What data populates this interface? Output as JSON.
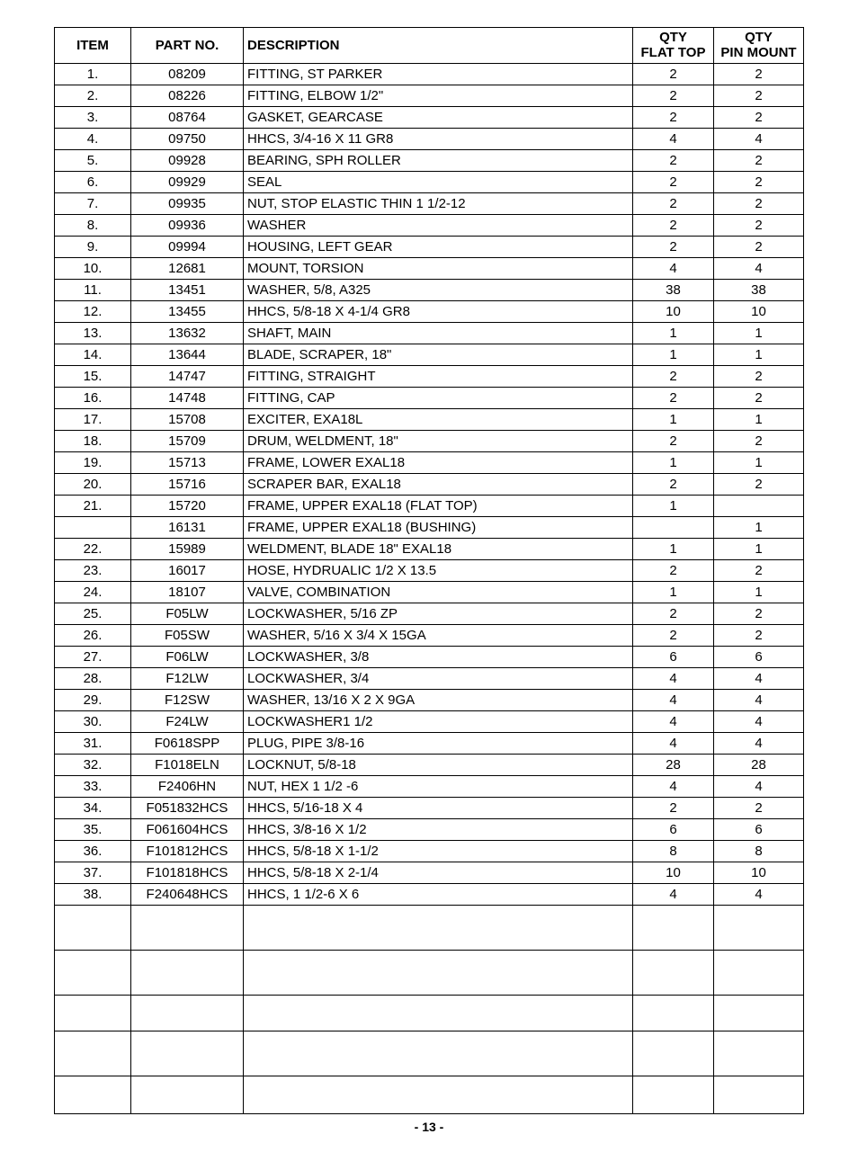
{
  "table": {
    "columns": {
      "item": "ITEM",
      "part": "PART NO.",
      "desc": "DESCRIPTION",
      "qty1_top": "QTY",
      "qty1_bot": "FLAT TOP",
      "qty2_top": "QTY",
      "qty2_bot": "PIN MOUNT"
    },
    "rows": [
      {
        "item": "1.",
        "part": "08209",
        "desc": "FITTING, ST PARKER",
        "q1": "2",
        "q2": "2"
      },
      {
        "item": "2.",
        "part": "08226",
        "desc": "FITTING, ELBOW 1/2\"",
        "q1": "2",
        "q2": "2"
      },
      {
        "item": "3.",
        "part": "08764",
        "desc": "GASKET, GEARCASE",
        "q1": "2",
        "q2": "2"
      },
      {
        "item": "4.",
        "part": "09750",
        "desc": "HHCS, 3/4-16 X 11 GR8",
        "q1": "4",
        "q2": "4"
      },
      {
        "item": "5.",
        "part": "09928",
        "desc": "BEARING, SPH ROLLER",
        "q1": "2",
        "q2": "2"
      },
      {
        "item": "6.",
        "part": "09929",
        "desc": "SEAL",
        "q1": "2",
        "q2": "2"
      },
      {
        "item": "7.",
        "part": "09935",
        "desc": "NUT, STOP ELASTIC THIN 1 1/2-12",
        "q1": "2",
        "q2": "2"
      },
      {
        "item": "8.",
        "part": "09936",
        "desc": "WASHER",
        "q1": "2",
        "q2": "2"
      },
      {
        "item": "9.",
        "part": "09994",
        "desc": "HOUSING, LEFT GEAR",
        "q1": "2",
        "q2": "2"
      },
      {
        "item": "10.",
        "part": "12681",
        "desc": "MOUNT, TORSION",
        "q1": "4",
        "q2": "4"
      },
      {
        "item": "11.",
        "part": "13451",
        "desc": "WASHER, 5/8, A325",
        "q1": "38",
        "q2": "38"
      },
      {
        "item": "12.",
        "part": "13455",
        "desc": "HHCS, 5/8-18 X 4-1/4 GR8",
        "q1": "10",
        "q2": "10"
      },
      {
        "item": "13.",
        "part": "13632",
        "desc": "SHAFT, MAIN",
        "q1": "1",
        "q2": "1"
      },
      {
        "item": "14.",
        "part": "13644",
        "desc": "BLADE, SCRAPER, 18\"",
        "q1": "1",
        "q2": "1"
      },
      {
        "item": "15.",
        "part": "14747",
        "desc": "FITTING, STRAIGHT",
        "q1": "2",
        "q2": "2"
      },
      {
        "item": "16.",
        "part": "14748",
        "desc": "FITTING, CAP",
        "q1": "2",
        "q2": "2"
      },
      {
        "item": "17.",
        "part": "15708",
        "desc": "EXCITER, EXA18L",
        "q1": "1",
        "q2": "1"
      },
      {
        "item": "18.",
        "part": "15709",
        "desc": "DRUM, WELDMENT, 18\"",
        "q1": "2",
        "q2": "2"
      },
      {
        "item": "19.",
        "part": "15713",
        "desc": "FRAME, LOWER EXAL18",
        "q1": "1",
        "q2": "1"
      },
      {
        "item": "20.",
        "part": "15716",
        "desc": "SCRAPER BAR, EXAL18",
        "q1": "2",
        "q2": "2"
      },
      {
        "item": "21.",
        "part": "15720",
        "desc": "FRAME, UPPER EXAL18 (FLAT TOP)",
        "q1": "1",
        "q2": ""
      },
      {
        "item": "",
        "part": "16131",
        "desc": "FRAME, UPPER EXAL18 (BUSHING)",
        "q1": "",
        "q2": "1"
      },
      {
        "item": "22.",
        "part": "15989",
        "desc": "WELDMENT, BLADE 18\" EXAL18",
        "q1": "1",
        "q2": "1"
      },
      {
        "item": "23.",
        "part": "16017",
        "desc": "HOSE, HYDRUALIC 1/2 X 13.5",
        "q1": "2",
        "q2": "2"
      },
      {
        "item": "24.",
        "part": "18107",
        "desc": "VALVE, COMBINATION",
        "q1": "1",
        "q2": "1"
      },
      {
        "item": "25.",
        "part": "F05LW",
        "desc": "LOCKWASHER, 5/16 ZP",
        "q1": "2",
        "q2": "2"
      },
      {
        "item": "26.",
        "part": "F05SW",
        "desc": "WASHER, 5/16 X 3/4 X 15GA",
        "q1": "2",
        "q2": "2"
      },
      {
        "item": "27.",
        "part": "F06LW",
        "desc": "LOCKWASHER, 3/8",
        "q1": "6",
        "q2": "6"
      },
      {
        "item": "28.",
        "part": "F12LW",
        "desc": "LOCKWASHER, 3/4",
        "q1": "4",
        "q2": "4"
      },
      {
        "item": "29.",
        "part": "F12SW",
        "desc": "WASHER, 13/16 X 2 X 9GA",
        "q1": "4",
        "q2": "4"
      },
      {
        "item": "30.",
        "part": "F24LW",
        "desc": "LOCKWASHER1 1/2",
        "q1": "4",
        "q2": "4"
      },
      {
        "item": "31.",
        "part": "F0618SPP",
        "desc": "PLUG, PIPE 3/8-16",
        "q1": "4",
        "q2": "4"
      },
      {
        "item": "32.",
        "part": "F1018ELN",
        "desc": "LOCKNUT, 5/8-18",
        "q1": "28",
        "q2": "28"
      },
      {
        "item": "33.",
        "part": "F2406HN",
        "desc": "NUT, HEX 1 1/2 -6",
        "q1": "4",
        "q2": "4"
      },
      {
        "item": "34.",
        "part": "F051832HCS",
        "desc": "HHCS, 5/16-18 X 4",
        "q1": "2",
        "q2": "2"
      },
      {
        "item": "35.",
        "part": "F061604HCS",
        "desc": "HHCS, 3/8-16 X 1/2",
        "q1": "6",
        "q2": "6"
      },
      {
        "item": "36.",
        "part": "F101812HCS",
        "desc": "HHCS, 5/8-18 X 1-1/2",
        "q1": "8",
        "q2": "8"
      },
      {
        "item": "37.",
        "part": "F101818HCS",
        "desc": "HHCS, 5/8-18 X 2-1/4",
        "q1": "10",
        "q2": "10"
      },
      {
        "item": "38.",
        "part": "F240648HCS",
        "desc": "HHCS, 1 1/2-6 X 6",
        "q1": "4",
        "q2": "4"
      }
    ],
    "empty_row_heights": [
      50,
      50,
      40,
      50,
      42
    ],
    "border_color": "#000000",
    "background_color": "#ffffff",
    "font_size": 15
  },
  "page_number": "- 13 -"
}
